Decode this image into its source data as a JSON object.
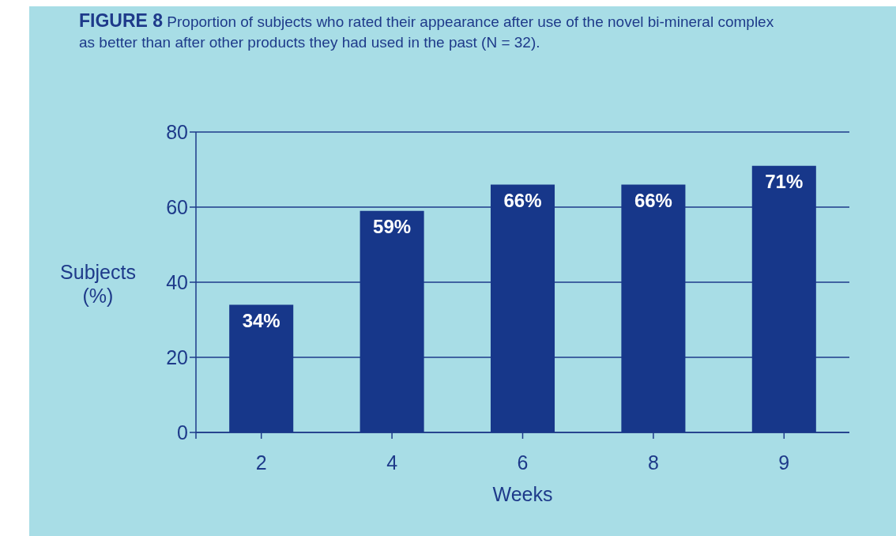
{
  "chart_data": {
    "type": "bar",
    "title": "FIGURE 8 Proportion of subjects who rated their appearance after use of the novel bi-mineral complex as better than after other products they had used in the past (N = 32).",
    "xlabel": "Weeks",
    "ylabel": "Subjects (%)",
    "categories": [
      "2",
      "4",
      "6",
      "8",
      "9"
    ],
    "values": [
      34,
      59,
      66,
      66,
      71
    ],
    "value_labels": [
      "34%",
      "59%",
      "66%",
      "66%",
      "71%"
    ],
    "color": "#17378a",
    "ylim": [
      0,
      80
    ],
    "yticks": [
      0,
      20,
      40,
      60,
      80
    ],
    "grid": "y"
  }
}
